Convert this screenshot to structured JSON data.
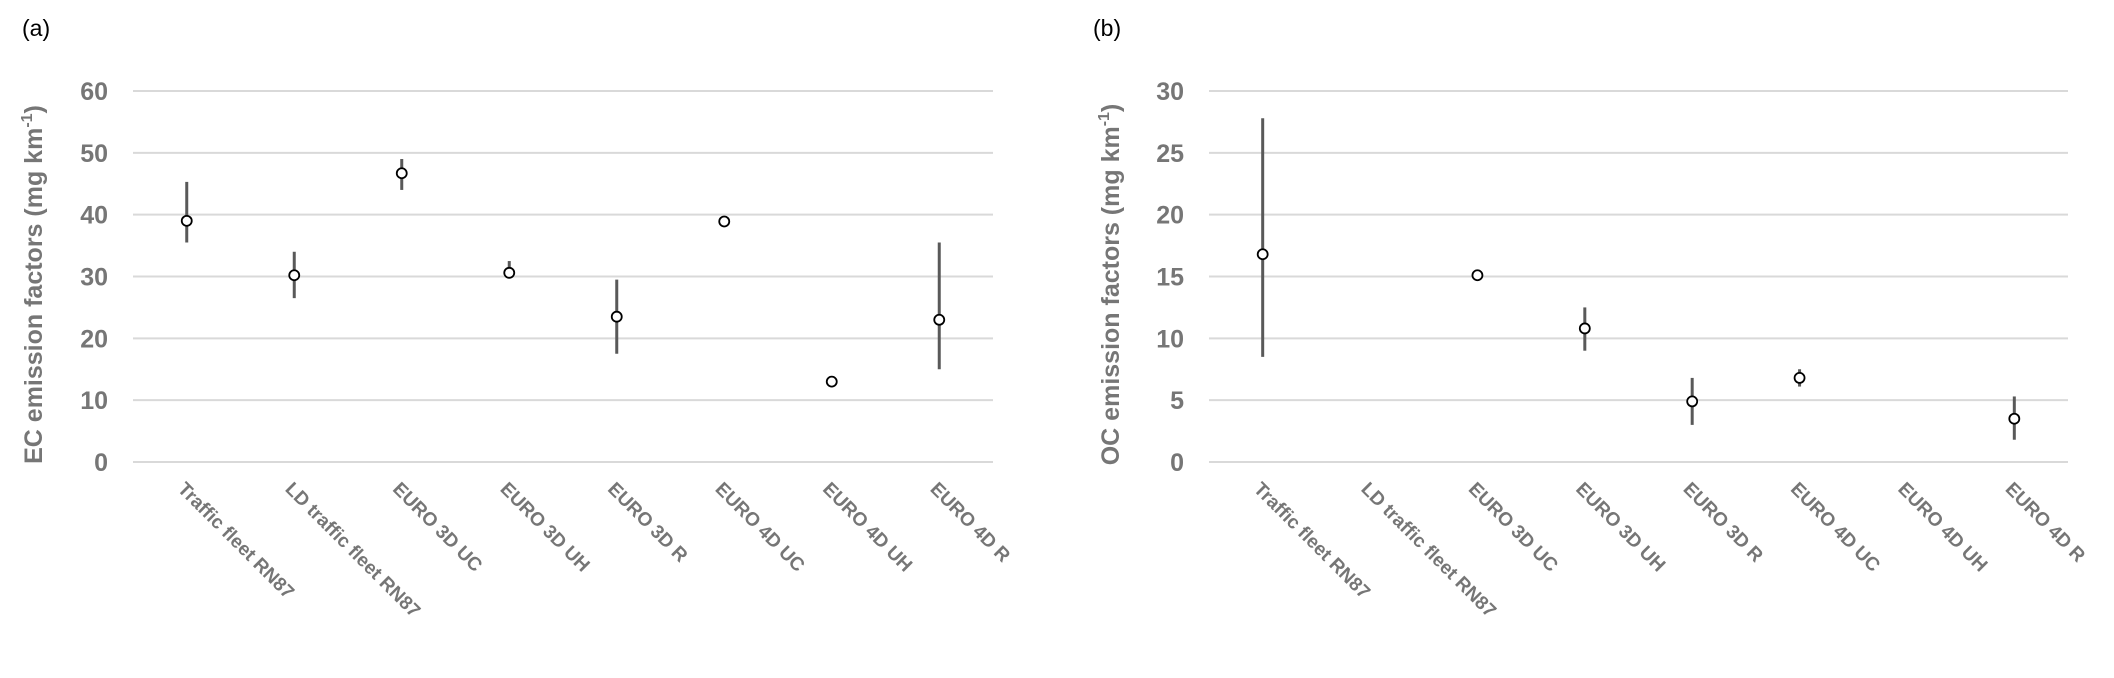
{
  "chart_data": [
    {
      "type": "scatter",
      "panel_label": "(a)",
      "ylabel": "EC emission factors (mg km",
      "ylabel_sup": "-1",
      "ylabel_close": ")",
      "ylim": [
        0,
        60
      ],
      "yticks": [
        0,
        10,
        20,
        30,
        40,
        50,
        60
      ],
      "grid": true,
      "categories": [
        "Traffic fleet RN87",
        "LD traffic fleet RN87",
        "EURO 3D UC",
        "EURO 3D UH",
        "EURO 3D R",
        "EURO 4D UC",
        "EURO 4D UH",
        "EURO 4D R"
      ],
      "values": [
        39.0,
        30.2,
        46.7,
        30.6,
        23.5,
        38.9,
        13.0,
        23.0
      ],
      "error_low": [
        35.5,
        26.5,
        44.0,
        30.0,
        17.5,
        38.5,
        null,
        15.0
      ],
      "error_high": [
        45.3,
        34.0,
        49.0,
        32.5,
        29.5,
        39.3,
        null,
        35.5
      ]
    },
    {
      "type": "scatter",
      "panel_label": "(b)",
      "ylabel": "OC emission factors (mg km",
      "ylabel_sup": "-1",
      "ylabel_close": ")",
      "ylim": [
        0,
        30
      ],
      "yticks": [
        0,
        5,
        10,
        15,
        20,
        25,
        30
      ],
      "grid": true,
      "categories": [
        "Traffic fleet RN87",
        "LD traffic fleet RN87",
        "EURO 3D UC",
        "EURO 3D UH",
        "EURO 3D R",
        "EURO 4D UC",
        "EURO 4D UH",
        "EURO 4D R"
      ],
      "values": [
        16.8,
        null,
        15.1,
        10.8,
        4.9,
        6.8,
        null,
        3.5
      ],
      "error_low": [
        8.5,
        null,
        null,
        9.0,
        3.0,
        6.1,
        null,
        1.8
      ],
      "error_high": [
        27.8,
        null,
        null,
        12.5,
        6.8,
        7.5,
        null,
        5.3
      ]
    }
  ],
  "colors": {
    "grid": "#d9d9d9",
    "text": "#767676",
    "errorbar": "#595959",
    "marker_edge": "#000000",
    "marker_fill": "#ffffff"
  }
}
